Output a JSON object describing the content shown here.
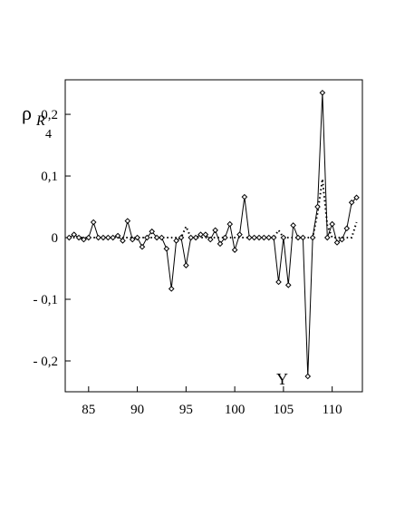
{
  "chart_data": {
    "type": "line",
    "ylabel": {
      "symbol": "ρ",
      "sub": "R",
      "subsub": "4"
    },
    "xlabel": "Y",
    "x": [
      83,
      83.5,
      84,
      84.5,
      85,
      85.5,
      86,
      86.5,
      87,
      87.5,
      88,
      88.5,
      89,
      89.5,
      90,
      90.5,
      91,
      91.5,
      92,
      92.5,
      93,
      93.5,
      94,
      94.5,
      95,
      95.5,
      96,
      96.5,
      97,
      97.5,
      98,
      98.5,
      99,
      99.5,
      100,
      100.5,
      101,
      101.5,
      102,
      102.5,
      103,
      103.5,
      104,
      104.5,
      105,
      105.5,
      106,
      106.5,
      107,
      107.5,
      108,
      108.5,
      109,
      109.5,
      110,
      110.5,
      111,
      111.5,
      112,
      112.5
    ],
    "series": [
      {
        "color": "#000000",
        "style": "solid",
        "markers": true,
        "values": [
          0,
          0.005,
          0,
          -0.003,
          0,
          0.025,
          0,
          0,
          0,
          0,
          0.003,
          -0.005,
          0.027,
          -0.003,
          0,
          -0.015,
          0,
          0.01,
          0,
          0,
          -0.018,
          -0.083,
          -0.005,
          0,
          -0.045,
          0,
          0,
          0.005,
          0.005,
          -0.003,
          0.012,
          -0.01,
          0,
          0.022,
          -0.02,
          0.005,
          0.066,
          0,
          0,
          0,
          0,
          0,
          0,
          -0.072,
          0,
          -0.077,
          0.02,
          0,
          0,
          -0.225,
          0,
          0.05,
          0.235,
          0,
          0.022,
          -0.008,
          -0.003,
          0.015,
          0.057,
          0.065
        ]
      },
      {
        "color": "#000000",
        "style": "dotted",
        "markers": false,
        "values": [
          0,
          0,
          0,
          0,
          0,
          0,
          0,
          0,
          0,
          0,
          0,
          0,
          0,
          0,
          0,
          0,
          0,
          0,
          0,
          0,
          0,
          0,
          0,
          0,
          0.018,
          0,
          0,
          0,
          0,
          0,
          0,
          0,
          0,
          0,
          0,
          0,
          0,
          0,
          0,
          0,
          0,
          0,
          0,
          0.012,
          0,
          0,
          0,
          0,
          0,
          0,
          0,
          0.04,
          0.095,
          0.02,
          0,
          0,
          0,
          0,
          0,
          0.025
        ]
      }
    ],
    "xlim": [
      82.6,
      113.1
    ],
    "ylim": [
      -0.25,
      0.256
    ],
    "xticks": [
      85,
      90,
      95,
      100,
      105,
      110
    ],
    "yticks": [
      {
        "value": -0.2,
        "label": "- 0,2"
      },
      {
        "value": -0.1,
        "label": "- 0,1"
      },
      0,
      {
        "value": 0.1,
        "label": "0,1"
      },
      {
        "value": 0.2,
        "label": "0,2"
      }
    ]
  }
}
